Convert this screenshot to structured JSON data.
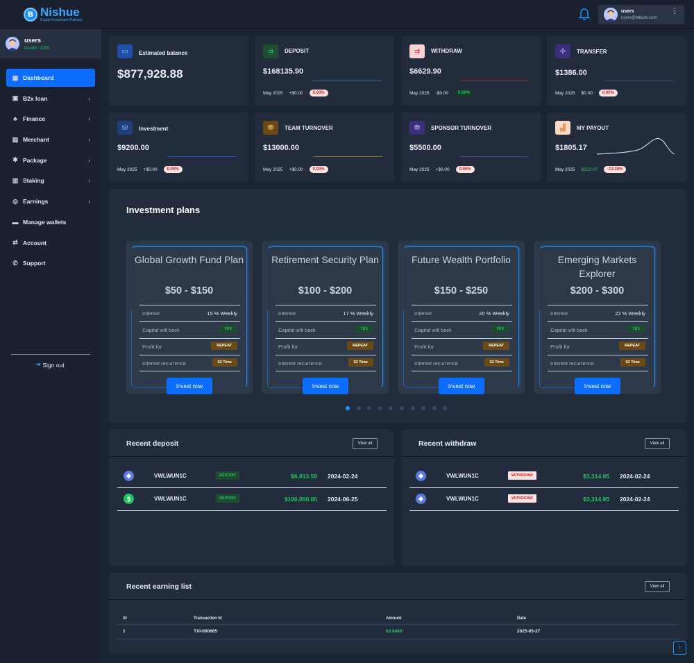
{
  "brand": {
    "name": "Nishue",
    "tagline": "Crypto Investment Platform",
    "logo_letter": "B"
  },
  "header": {
    "user_name": "users",
    "user_email": "users@bdtask.com",
    "menu_glyph": "⋮"
  },
  "sidebar": {
    "user_name": "users",
    "user_id": "UserId : 1000",
    "items": [
      {
        "label": "Dashboard",
        "icon": "grid-icon",
        "active": true,
        "has_children": false
      },
      {
        "label": "B2x loan",
        "icon": "loan-icon",
        "has_children": true
      },
      {
        "label": "Finance",
        "icon": "finance-icon",
        "has_children": true
      },
      {
        "label": "Merchant",
        "icon": "merchant-icon",
        "has_children": true
      },
      {
        "label": "Package",
        "icon": "package-icon",
        "has_children": true
      },
      {
        "label": "Staking",
        "icon": "staking-icon",
        "has_children": true
      },
      {
        "label": "Earnings",
        "icon": "earnings-icon",
        "has_children": true
      },
      {
        "label": "Manage wallets",
        "icon": "wallet-icon",
        "has_children": false
      },
      {
        "label": "Account",
        "icon": "account-icon",
        "has_children": false
      },
      {
        "label": "Support",
        "icon": "phone-icon",
        "has_children": false
      }
    ],
    "signout": "Sign out"
  },
  "stats": {
    "balance": {
      "title": "Estimated balance",
      "amount": "$877,928.88"
    },
    "deposit": {
      "title": "DEPOSIT",
      "amount": "$168135.90",
      "period": "May 2025",
      "delta": "+$0.00",
      "pct": "0.00%"
    },
    "withdraw": {
      "title": "WITHDRAW",
      "amount": "$6629.90",
      "period": "May 2025",
      "delta": "-$0.00",
      "pct": "0.00%"
    },
    "transfer": {
      "title": "TRANSFER",
      "amount": "$1386.00",
      "period": "May 2025",
      "delta": "$0.00",
      "pct": "0.00%"
    },
    "investment": {
      "title": "Investment",
      "amount": "$9200.00",
      "period": "May 2025",
      "delta": "+$0.00",
      "pct": "0.00%"
    },
    "team": {
      "title": "TEAM TURNOVER",
      "amount": "$13000.00",
      "period": "May 2025",
      "delta": "+$0.00",
      "pct": "0.00%"
    },
    "sponsor": {
      "title": "SPONSOR TURNOVER",
      "amount": "$5500.00",
      "period": "May 2025",
      "delta": "+$0.00",
      "pct": "0.00%"
    },
    "payout": {
      "title": "MY PAYOUT",
      "amount": "$1805.17",
      "period": "May 2025",
      "delta": "$253.07",
      "pct": "-13.28%"
    }
  },
  "colors": {
    "accent": "#0d6efd",
    "positive": "#22c55e",
    "negative": "#dc2626"
  },
  "plans": {
    "title": "Investment plans",
    "labels": {
      "interest": "Interest",
      "capital": "Capital will back",
      "profit": "Profit for",
      "recurrence": "Interest recurrence",
      "cta": "Invest now"
    },
    "items": [
      {
        "name": "Global Growth Fund Plan",
        "price": "$50 - $150",
        "interest": "15 % Weekly",
        "capital": "YES",
        "profit": "REPEAT",
        "recurrence": "52 Time"
      },
      {
        "name": "Retirement Security Plan",
        "price": "$100 - $200",
        "interest": "17 % Weekly",
        "capital": "YES",
        "profit": "REPEAT",
        "recurrence": "52 Time"
      },
      {
        "name": "Future Wealth Portfolio",
        "price": "$150 - $250",
        "interest": "20 % Weekly",
        "capital": "YES",
        "profit": "REPEAT",
        "recurrence": "52 Time"
      },
      {
        "name": "Emerging Markets Explorer",
        "price": "$200 - $300",
        "interest": "22 % Weekly",
        "capital": "YES",
        "profit": "REPEAT",
        "recurrence": "52 Time"
      }
    ],
    "dots": 10,
    "active_dot": 0
  },
  "recent_deposit": {
    "title": "Recent deposit",
    "view_all": "View all",
    "rows": [
      {
        "coin": "ethereum-icon",
        "coin_glyph": "◆",
        "name": "VWLWUN1C",
        "type": "DEPOSIT",
        "amount": "$6,813.59",
        "date": "2024-02-24"
      },
      {
        "coin": "dollar-icon",
        "coin_glyph": "$",
        "name": "VWLWUN1C",
        "type": "DEPOSIT",
        "amount": "$100,000.00",
        "date": "2024-06-25"
      }
    ]
  },
  "recent_withdraw": {
    "title": "Recent withdraw",
    "view_all": "View all",
    "rows": [
      {
        "coin": "ethereum-icon",
        "coin_glyph": "◆",
        "name": "VWLWUN1C",
        "type": "WITHDRAW",
        "amount": "$3,314.95",
        "date": "2024-02-24"
      },
      {
        "coin": "ethereum-icon",
        "coin_glyph": "◆",
        "name": "VWLWUN1C",
        "type": "WITHDRAW",
        "amount": "$3,314.95",
        "date": "2024-02-24"
      }
    ]
  },
  "earnings": {
    "title": "Recent earning list",
    "view_all": "View all",
    "columns": [
      "Sl",
      "Transaction Id",
      "Amount",
      "Date"
    ],
    "rows": [
      {
        "sl": "1",
        "txid": "TXI-000665",
        "amount": "$3.8460",
        "date": "2025-05-27"
      }
    ]
  },
  "scroll_top": "↑"
}
